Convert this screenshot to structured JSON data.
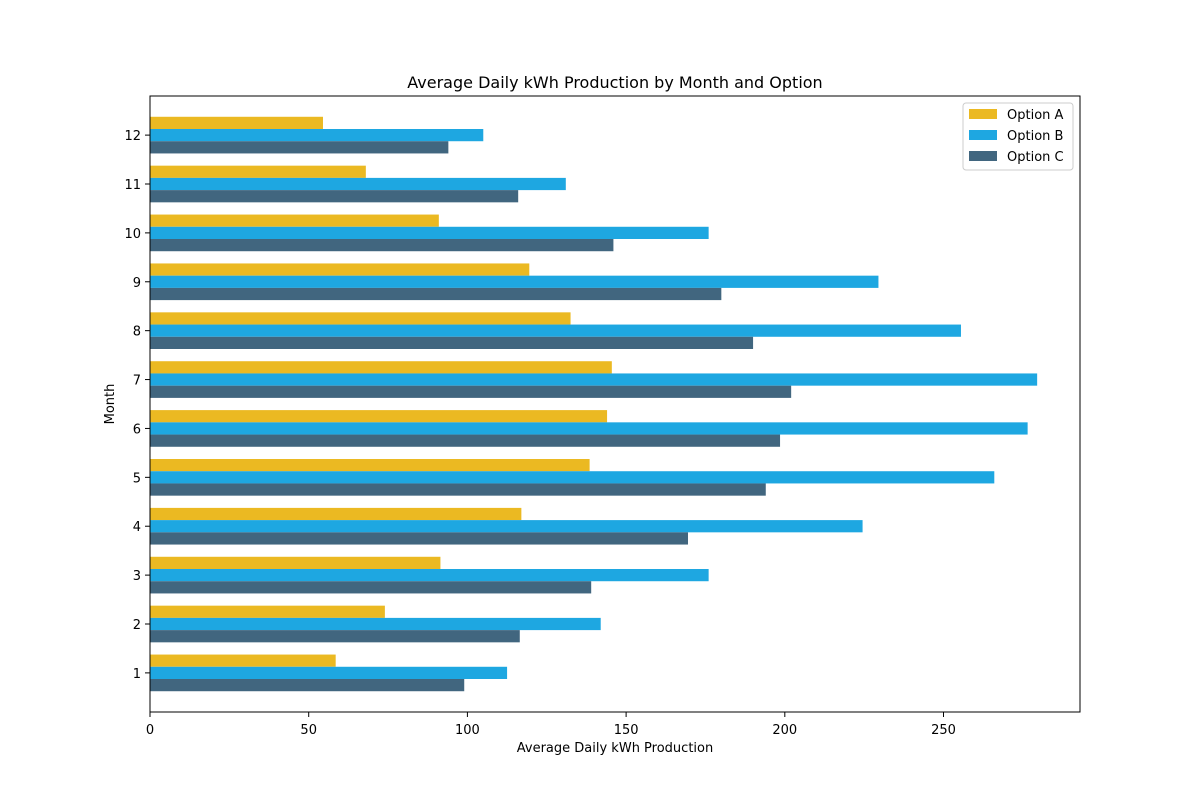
{
  "chart_data": {
    "type": "bar",
    "orientation": "horizontal",
    "title": "Average Daily kWh Production by Month and Option",
    "xlabel": "Average Daily kWh Production",
    "ylabel": "Month",
    "categories": [
      "1",
      "2",
      "3",
      "4",
      "5",
      "6",
      "7",
      "8",
      "9",
      "10",
      "11",
      "12"
    ],
    "xlim": [
      0,
      293
    ],
    "xticks": [
      0,
      50,
      100,
      150,
      200,
      250
    ],
    "series": [
      {
        "name": "Option A",
        "color": "#EBB922",
        "values": [
          58.5,
          74,
          91.5,
          117,
          138.5,
          144,
          145.5,
          132.5,
          119.5,
          91,
          68,
          54.5
        ]
      },
      {
        "name": "Option B",
        "color": "#1EA7E1",
        "values": [
          112.5,
          142,
          176,
          224.5,
          266,
          276.5,
          279.5,
          255.5,
          229.5,
          176,
          131,
          105
        ]
      },
      {
        "name": "Option C",
        "color": "#41667F",
        "values": [
          99,
          116.5,
          139,
          169.5,
          194,
          198.5,
          202,
          190,
          180,
          146,
          116,
          94
        ]
      }
    ],
    "legend_position": "top-right",
    "grid": false
  }
}
